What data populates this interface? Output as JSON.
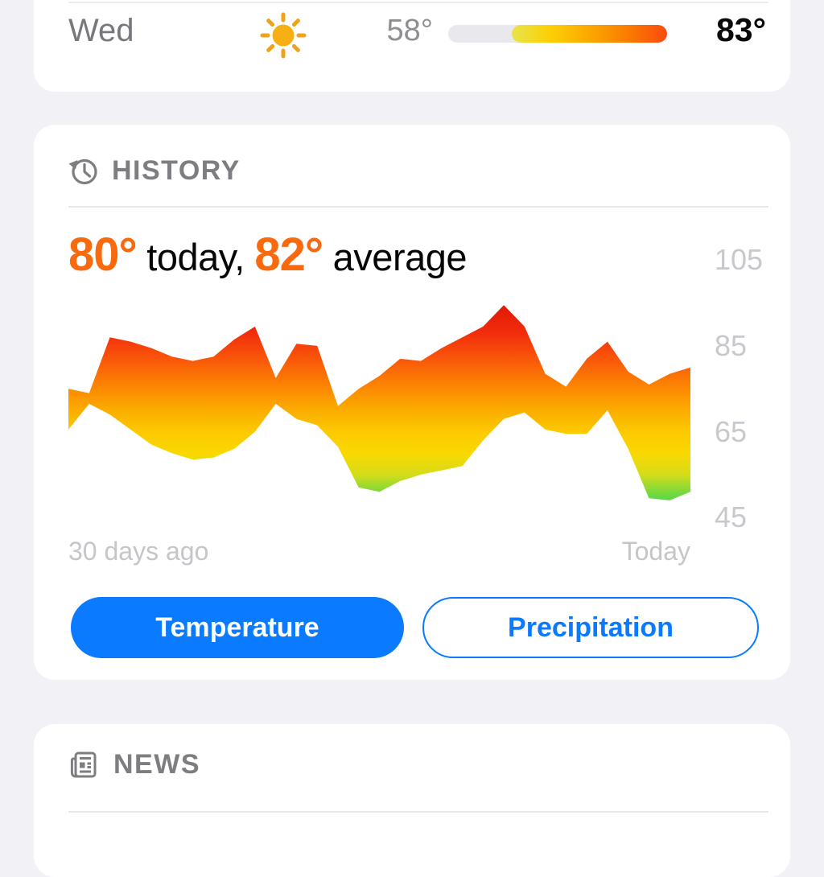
{
  "page": {
    "background": "#F1F1F6",
    "card_background": "#FFFFFF"
  },
  "forecast_row": {
    "day": "Wed",
    "condition_icon": "sun-icon",
    "low_temp": "58°",
    "high_temp": "83°",
    "range_bar": {
      "track_color": "#E9E9ED",
      "fill_start_pct": 29,
      "gradient": [
        "#E8E44A",
        "#FCCF05",
        "#FBA800",
        "#FB7B00",
        "#F94B0E"
      ]
    }
  },
  "history": {
    "section_title": "HISTORY",
    "section_icon": "history-clock-icon",
    "headline": {
      "today_value": "80°",
      "today_label": " today, ",
      "average_value": "82°",
      "average_label": " average",
      "accent_color": "#F9690E"
    },
    "buttons": {
      "temperature_label": "Temperature",
      "precipitation_label": "Precipitation",
      "active": "Temperature",
      "accent_color": "#0A7AFF"
    },
    "chart_data": {
      "type": "area",
      "title": "30-day temperature history band (daily high/low, °F)",
      "x": [
        0,
        1,
        2,
        3,
        4,
        5,
        6,
        7,
        8,
        9,
        10,
        11,
        12,
        13,
        14,
        15,
        16,
        17,
        18,
        19,
        20,
        21,
        22,
        23,
        24,
        25,
        26,
        27,
        28,
        29,
        30
      ],
      "x_labels": [
        "30 days ago",
        "Today"
      ],
      "y_ticks": [
        105,
        85,
        65,
        45
      ],
      "ylim": [
        41.9,
        98.1
      ],
      "grid": false,
      "legend": false,
      "series": [
        {
          "name": "daily_high",
          "values": [
            75,
            74,
            87,
            86,
            84.5,
            82.5,
            81.5,
            82.5,
            86.5,
            89.5,
            77.5,
            85.5,
            85,
            71,
            75,
            78,
            82,
            81.5,
            84.5,
            87,
            89.5,
            94.5,
            89.5,
            78.5,
            75.5,
            82,
            86,
            79,
            76,
            78.5,
            80
          ]
        },
        {
          "name": "daily_low",
          "values": [
            65.5,
            71.5,
            69,
            65.5,
            62,
            60,
            58.5,
            59,
            61,
            65,
            71.5,
            68,
            66.5,
            61.5,
            52,
            51,
            53.5,
            55,
            56,
            57,
            63,
            68,
            69.5,
            65.5,
            64.5,
            64.5,
            70,
            61,
            49.5,
            49,
            51
          ]
        }
      ],
      "gradient_stops": [
        {
          "temp": 96,
          "color": "#DB1405"
        },
        {
          "temp": 88,
          "color": "#F22D0C"
        },
        {
          "temp": 82,
          "color": "#F9560A"
        },
        {
          "temp": 76,
          "color": "#FC8202"
        },
        {
          "temp": 70,
          "color": "#FBAD00"
        },
        {
          "temp": 65,
          "color": "#FCC900"
        },
        {
          "temp": 60,
          "color": "#FAD800"
        },
        {
          "temp": 55,
          "color": "#D5DC19"
        },
        {
          "temp": 51,
          "color": "#7CD93B"
        },
        {
          "temp": 47,
          "color": "#2ED55C"
        }
      ]
    }
  },
  "news": {
    "section_title": "NEWS",
    "section_icon": "newspaper-icon"
  }
}
